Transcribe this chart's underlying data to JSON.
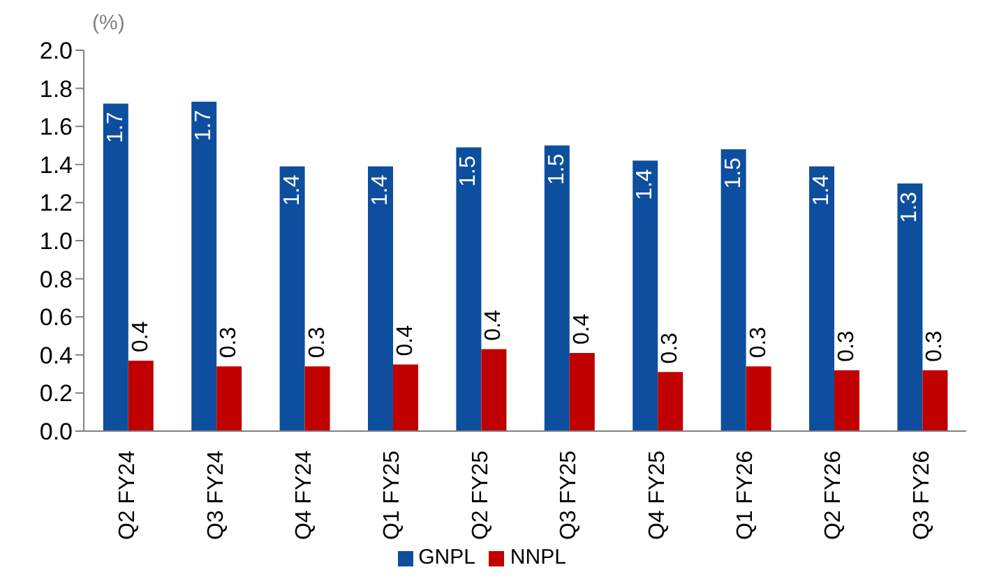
{
  "chart_data": {
    "type": "bar",
    "ylabel": "(%)",
    "categories": [
      "Q2 FY24",
      "Q3 FY24",
      "Q4 FY24",
      "Q1 FY25",
      "Q2 FY25",
      "Q3 FY25",
      "Q4 FY25",
      "Q1 FY26",
      "Q2 FY26",
      "Q3 FY26"
    ],
    "series": [
      {
        "name": "GNPL",
        "color": "#0d4f9e",
        "values": [
          1.72,
          1.73,
          1.39,
          1.39,
          1.49,
          1.5,
          1.42,
          1.48,
          1.39,
          1.3
        ],
        "value_labels": [
          "1.7",
          "1.7",
          "1.4",
          "1.4",
          "1.5",
          "1.5",
          "1.4",
          "1.5",
          "1.4",
          "1.3"
        ]
      },
      {
        "name": "NNPL",
        "color": "#c00000",
        "values": [
          0.37,
          0.34,
          0.34,
          0.35,
          0.43,
          0.41,
          0.31,
          0.34,
          0.32,
          0.32
        ],
        "value_labels": [
          "0.4",
          "0.3",
          "0.3",
          "0.4",
          "0.4",
          "0.4",
          "0.3",
          "0.3",
          "0.3",
          "0.3"
        ]
      }
    ],
    "ylim": [
      0,
      2
    ],
    "yticks": [
      {
        "value": 0,
        "label": "0.0"
      },
      {
        "value": 0.2,
        "label": "0.2"
      },
      {
        "value": 0.4,
        "label": "0.4"
      },
      {
        "value": 0.6,
        "label": "0.6"
      },
      {
        "value": 0.8,
        "label": "0.8"
      },
      {
        "value": 1,
        "label": "1.0"
      },
      {
        "value": 1.2,
        "label": "1.2"
      },
      {
        "value": 1.4,
        "label": "1.4"
      },
      {
        "value": 1.6,
        "label": "1.6"
      },
      {
        "value": 1.8,
        "label": "1.8"
      },
      {
        "value": 2,
        "label": "2.0"
      }
    ],
    "grid": false,
    "legend": "bottom"
  }
}
